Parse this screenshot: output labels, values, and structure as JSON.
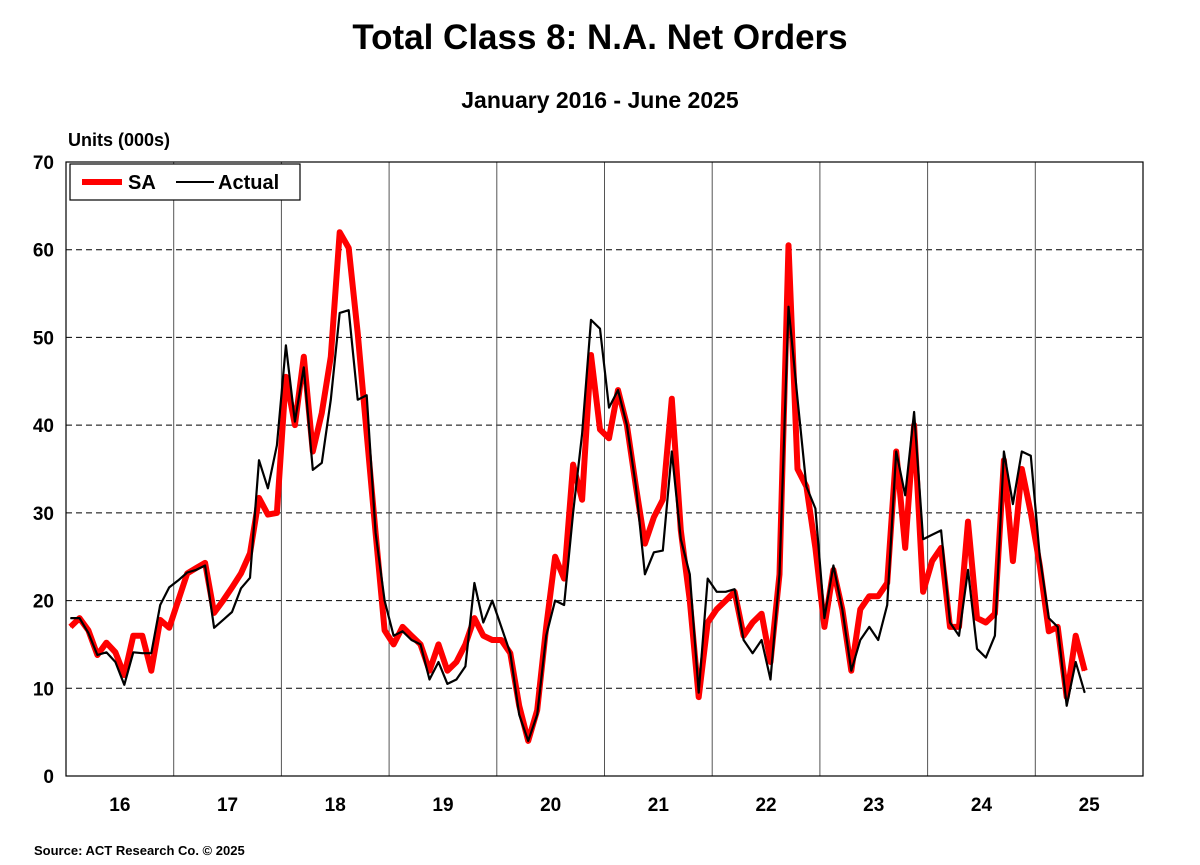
{
  "chart_data": {
    "type": "line",
    "title": "Total Class 8: N.A. Net Orders",
    "subtitle": "January 2016 - June 2025",
    "ylabel": "Units (000s)",
    "xlabel": "",
    "ylim": [
      0,
      70
    ],
    "yticks": [
      0,
      10,
      20,
      30,
      40,
      50,
      60,
      70
    ],
    "xtick_labels": [
      "16",
      "17",
      "18",
      "19",
      "20",
      "21",
      "22",
      "23",
      "24",
      "25"
    ],
    "x_start": "2016-01",
    "x_end": "2025-06",
    "grid": true,
    "legend_position": "top-left",
    "series": [
      {
        "name": "SA",
        "color": "#ff0000",
        "values": [
          17,
          18,
          16.6,
          13.8,
          15.2,
          14.1,
          11.5,
          16,
          16,
          12,
          17.8,
          16.9,
          20,
          23.1,
          23.7,
          24.3,
          18.6,
          20,
          21.5,
          23.1,
          25.4,
          31.7,
          29.8,
          30,
          45.5,
          40,
          47.8,
          37,
          41.4,
          47.8,
          62,
          60.2,
          50.5,
          39,
          27.7,
          16.6,
          15,
          17,
          16,
          15,
          12,
          15,
          12,
          13,
          15,
          18,
          16,
          15.5,
          15.5,
          14,
          8,
          4,
          7.5,
          17,
          25,
          22.5,
          35.5,
          31.5,
          48,
          39.5,
          38.5,
          44,
          40,
          33,
          26.5,
          29.5,
          31.5,
          43,
          28,
          20,
          9,
          17.5,
          19,
          20,
          21,
          16,
          17.5,
          18.5,
          13,
          23,
          60.5,
          35,
          33,
          26,
          17,
          23.5,
          19,
          12,
          19,
          20.5,
          20.5,
          22,
          37,
          26,
          40,
          21,
          24.5,
          26,
          17,
          17,
          29,
          18,
          17.5,
          18.5,
          36,
          24.5,
          35,
          30,
          24,
          16.5,
          17,
          9,
          16,
          12
        ]
      },
      {
        "name": "Actual",
        "color": "#000000",
        "values": [
          18,
          18,
          16.3,
          13.8,
          14.1,
          13,
          10.4,
          14.1,
          14,
          14,
          19.5,
          21.5,
          22.3,
          23.2,
          23.5,
          24,
          16.9,
          17.8,
          18.7,
          21.4,
          22.6,
          36,
          32.8,
          37.7,
          49.1,
          40.4,
          46.6,
          34.9,
          35.7,
          42.9,
          52.8,
          53.1,
          42.9,
          43.4,
          27.7,
          20,
          16,
          16.5,
          15.5,
          15,
          11,
          13,
          10.5,
          11,
          12.5,
          22,
          17.5,
          20,
          17,
          14,
          7,
          4,
          7,
          16,
          20,
          19.5,
          30,
          39,
          52,
          51,
          42,
          44,
          40,
          33,
          23,
          25.5,
          25.7,
          37,
          27,
          23,
          9.5,
          22.5,
          21,
          21,
          21.3,
          15.5,
          14,
          15.5,
          11,
          23,
          53.5,
          43,
          33,
          30.5,
          18,
          24,
          19,
          12,
          15.5,
          17,
          15.5,
          19.5,
          37,
          32,
          41.5,
          27,
          27.5,
          28,
          17.5,
          16,
          23.5,
          14.5,
          13.5,
          16,
          37,
          31,
          37,
          36.5,
          25,
          18,
          17,
          8,
          13,
          9.5
        ]
      }
    ]
  },
  "source": "Source: ACT Research Co. © 2025"
}
